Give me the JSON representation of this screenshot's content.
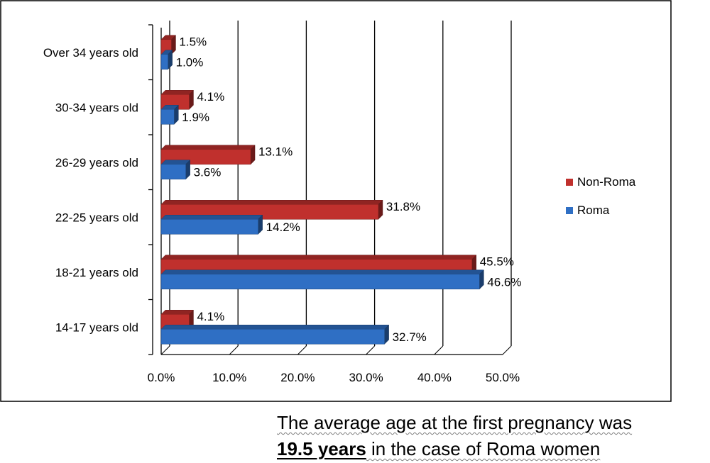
{
  "chart_data": {
    "type": "bar",
    "orientation": "horizontal",
    "three_d": true,
    "categories": [
      "14-17 years old",
      "18-21  years old",
      "22-25  years old",
      "26-29 years old",
      "30-34 years old",
      "Over  34  years old"
    ],
    "series": [
      {
        "name": "Non-Roma",
        "color": "#c0302d",
        "values": [
          4.1,
          45.5,
          31.8,
          13.1,
          4.1,
          1.5
        ],
        "labels": [
          "4.1%",
          "45.5%",
          "31.8%",
          "13.1%",
          "4.1%",
          "1.5%"
        ]
      },
      {
        "name": "Roma",
        "color": "#2f6fc4",
        "values": [
          32.7,
          46.6,
          14.2,
          3.6,
          1.9,
          1.0
        ],
        "labels": [
          "32.7%",
          "46.6%",
          "14.2%",
          "3.6%",
          "1.9%",
          "1.0%"
        ]
      }
    ],
    "x_ticks": [
      "0.0%",
      "10.0%",
      "20.0%",
      "30.0%",
      "40.0%",
      "50.0%"
    ],
    "xlim": [
      0,
      50
    ],
    "grid": "vertical",
    "legend_position": "right"
  },
  "caption": {
    "line1": "The average age at the first pregnancy was",
    "line2_bold": "19.5 years",
    "line2_rest": " in the case of Roma women"
  }
}
